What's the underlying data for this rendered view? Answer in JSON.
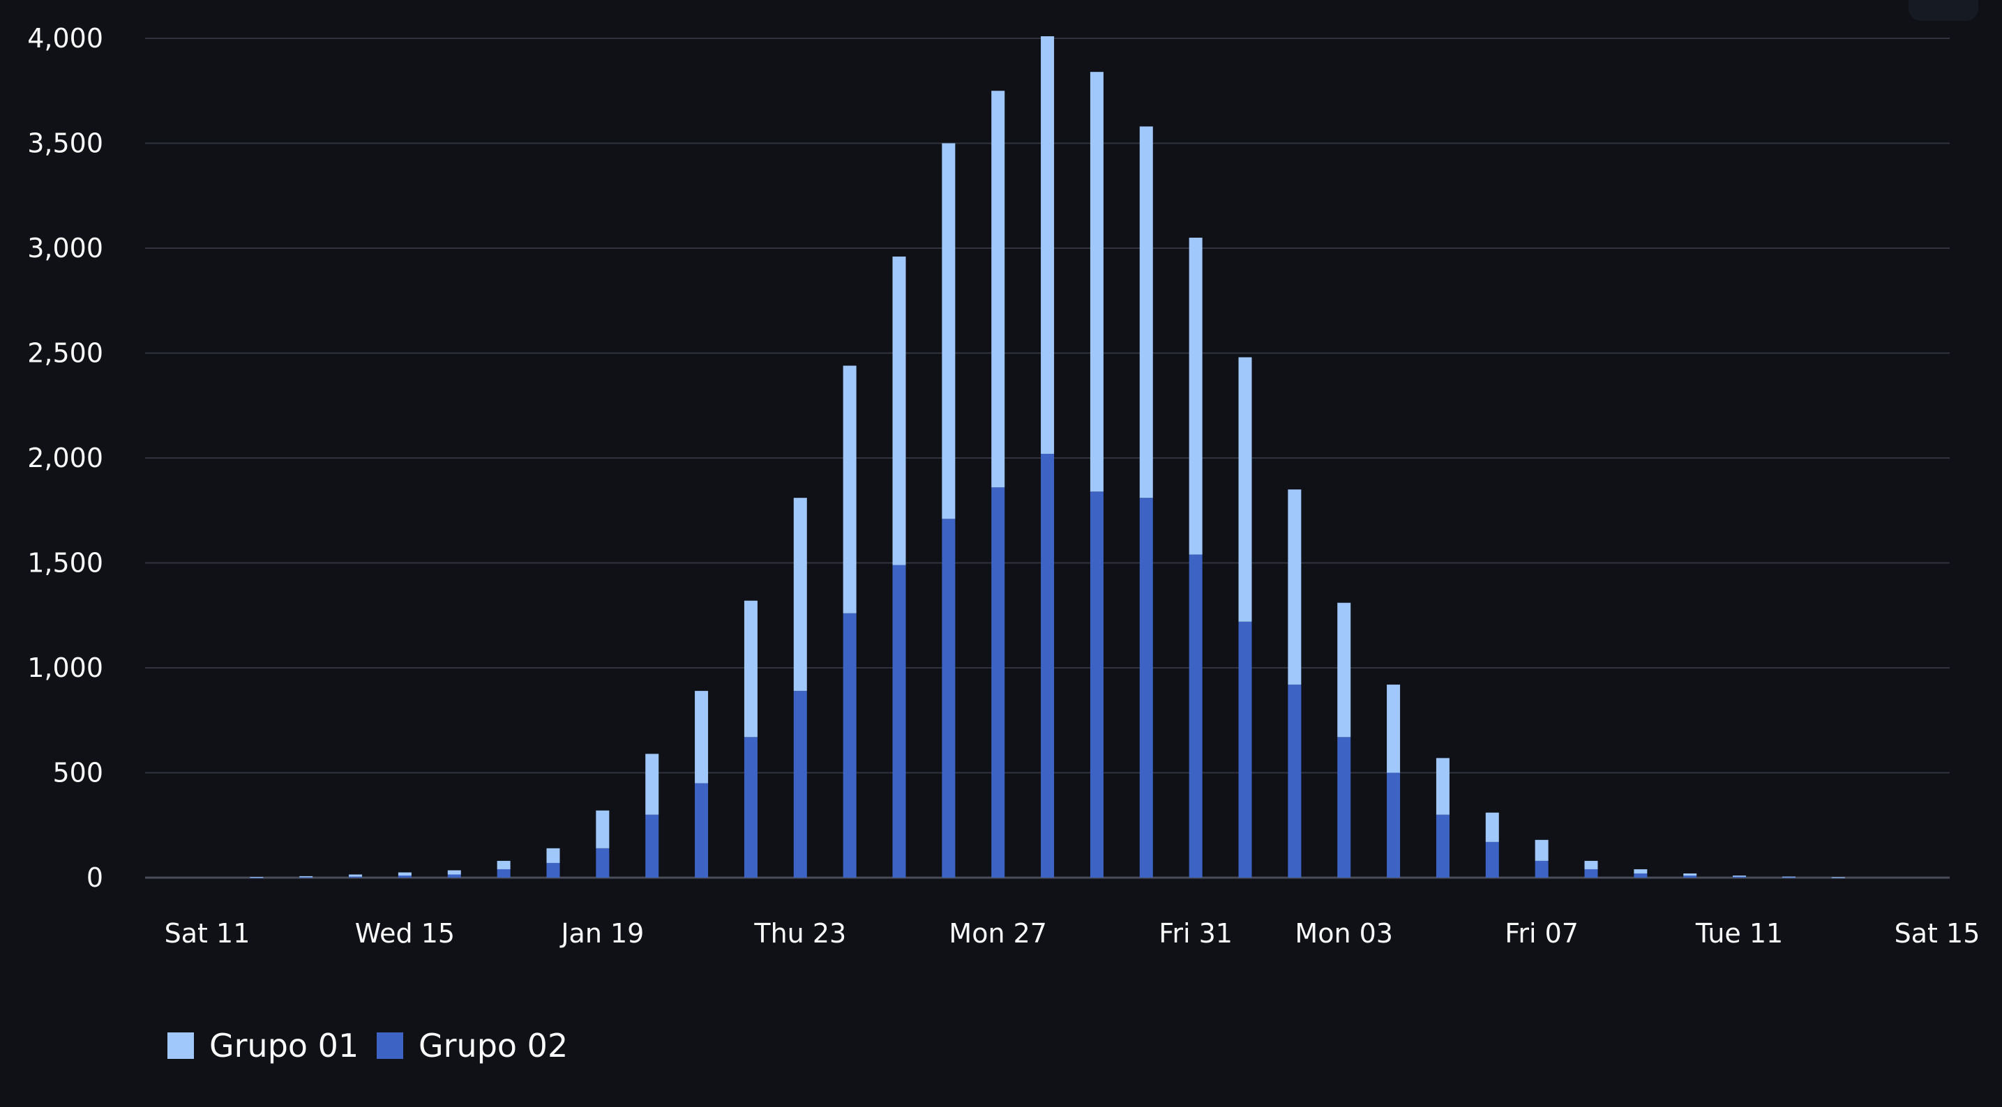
{
  "chart_data": {
    "type": "bar",
    "stacked": true,
    "grid": true,
    "legend_position": "bottom-left",
    "ylim": [
      0,
      4000
    ],
    "yticks": [
      "0",
      "500",
      "1,000",
      "1,500",
      "2,000",
      "2,500",
      "3,000",
      "3,500",
      "4,000"
    ],
    "ytick_values": [
      0,
      500,
      1000,
      1500,
      2000,
      2500,
      3000,
      3500,
      4000
    ],
    "x_start": "2025-01-11",
    "x_end": "2025-02-15",
    "xticks": [
      {
        "date": "2025-01-11",
        "label": "Sat 11"
      },
      {
        "date": "2025-01-15",
        "label": "Wed 15"
      },
      {
        "date": "2025-01-19",
        "label": "Jan 19"
      },
      {
        "date": "2025-01-23",
        "label": "Thu 23"
      },
      {
        "date": "2025-01-27",
        "label": "Mon 27"
      },
      {
        "date": "2025-01-31",
        "label": "Fri 31"
      },
      {
        "date": "2025-02-03",
        "label": "Mon 03"
      },
      {
        "date": "2025-02-07",
        "label": "Fri 07"
      },
      {
        "date": "2025-02-11",
        "label": "Tue 11"
      },
      {
        "date": "2025-02-15",
        "label": "Sat 15"
      }
    ],
    "dates": [
      "2025-01-12",
      "2025-01-13",
      "2025-01-14",
      "2025-01-15",
      "2025-01-16",
      "2025-01-17",
      "2025-01-18",
      "2025-01-19",
      "2025-01-20",
      "2025-01-21",
      "2025-01-22",
      "2025-01-23",
      "2025-01-24",
      "2025-01-25",
      "2025-01-26",
      "2025-01-27",
      "2025-01-28",
      "2025-01-29",
      "2025-01-30",
      "2025-01-31",
      "2025-02-01",
      "2025-02-02",
      "2025-02-03",
      "2025-02-04",
      "2025-02-05",
      "2025-02-06",
      "2025-02-07",
      "2025-02-08",
      "2025-02-09",
      "2025-02-10",
      "2025-02-11",
      "2025-02-12",
      "2025-02-13",
      "2025-02-14"
    ],
    "series": [
      {
        "name": "Grupo 02",
        "color": "#3d64c4",
        "values": [
          1,
          2,
          5,
          10,
          15,
          40,
          70,
          140,
          300,
          450,
          670,
          890,
          1260,
          1490,
          1710,
          1860,
          2020,
          1840,
          1810,
          1540,
          1220,
          920,
          670,
          500,
          300,
          170,
          80,
          40,
          20,
          10,
          5,
          2,
          1,
          0
        ]
      },
      {
        "name": "Grupo 01",
        "color": "#a0c8fa",
        "values": [
          2,
          5,
          10,
          15,
          20,
          40,
          70,
          180,
          290,
          440,
          650,
          920,
          1180,
          1470,
          1790,
          1890,
          1990,
          2000,
          1770,
          1510,
          1260,
          930,
          640,
          420,
          270,
          140,
          100,
          40,
          20,
          10,
          5,
          3,
          1,
          0
        ]
      }
    ]
  },
  "legend": {
    "items": [
      {
        "label": "Grupo 01",
        "color": "#a0c8fa"
      },
      {
        "label": "Grupo 02",
        "color": "#3d64c4"
      }
    ]
  },
  "colors": {
    "background": "#0f1117",
    "gridline": "#31333f",
    "text": "#fafafa"
  }
}
